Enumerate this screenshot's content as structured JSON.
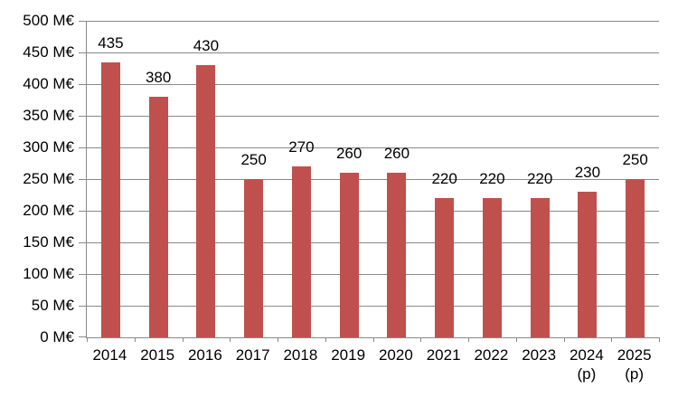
{
  "chart_data": {
    "type": "bar",
    "title": "",
    "xlabel": "",
    "ylabel": "",
    "unit": "M€",
    "categories": [
      "2014",
      "2015",
      "2016",
      "2017",
      "2018",
      "2019",
      "2020",
      "2021",
      "2022",
      "2023",
      "2024 (p)",
      "2025 (p)"
    ],
    "values": [
      435,
      380,
      430,
      250,
      270,
      260,
      260,
      220,
      220,
      220,
      230,
      250
    ],
    "data_labels": [
      "435",
      "380",
      "430",
      "250",
      "270",
      "260",
      "260",
      "220",
      "220",
      "220",
      "230",
      "250"
    ],
    "ylim": [
      0,
      500
    ],
    "ytick_step": 50,
    "ytick_labels": [
      "0 M€",
      "50 M€",
      "100 M€",
      "150 M€",
      "200 M€",
      "250 M€",
      "300 M€",
      "350 M€",
      "400 M€",
      "450 M€",
      "500 M€"
    ],
    "grid": true,
    "legend": false,
    "colors": {
      "bar": "#C0504D",
      "gridline": "#898989",
      "axis": "#898989",
      "text": "#000000",
      "background": "#ffffff"
    }
  }
}
